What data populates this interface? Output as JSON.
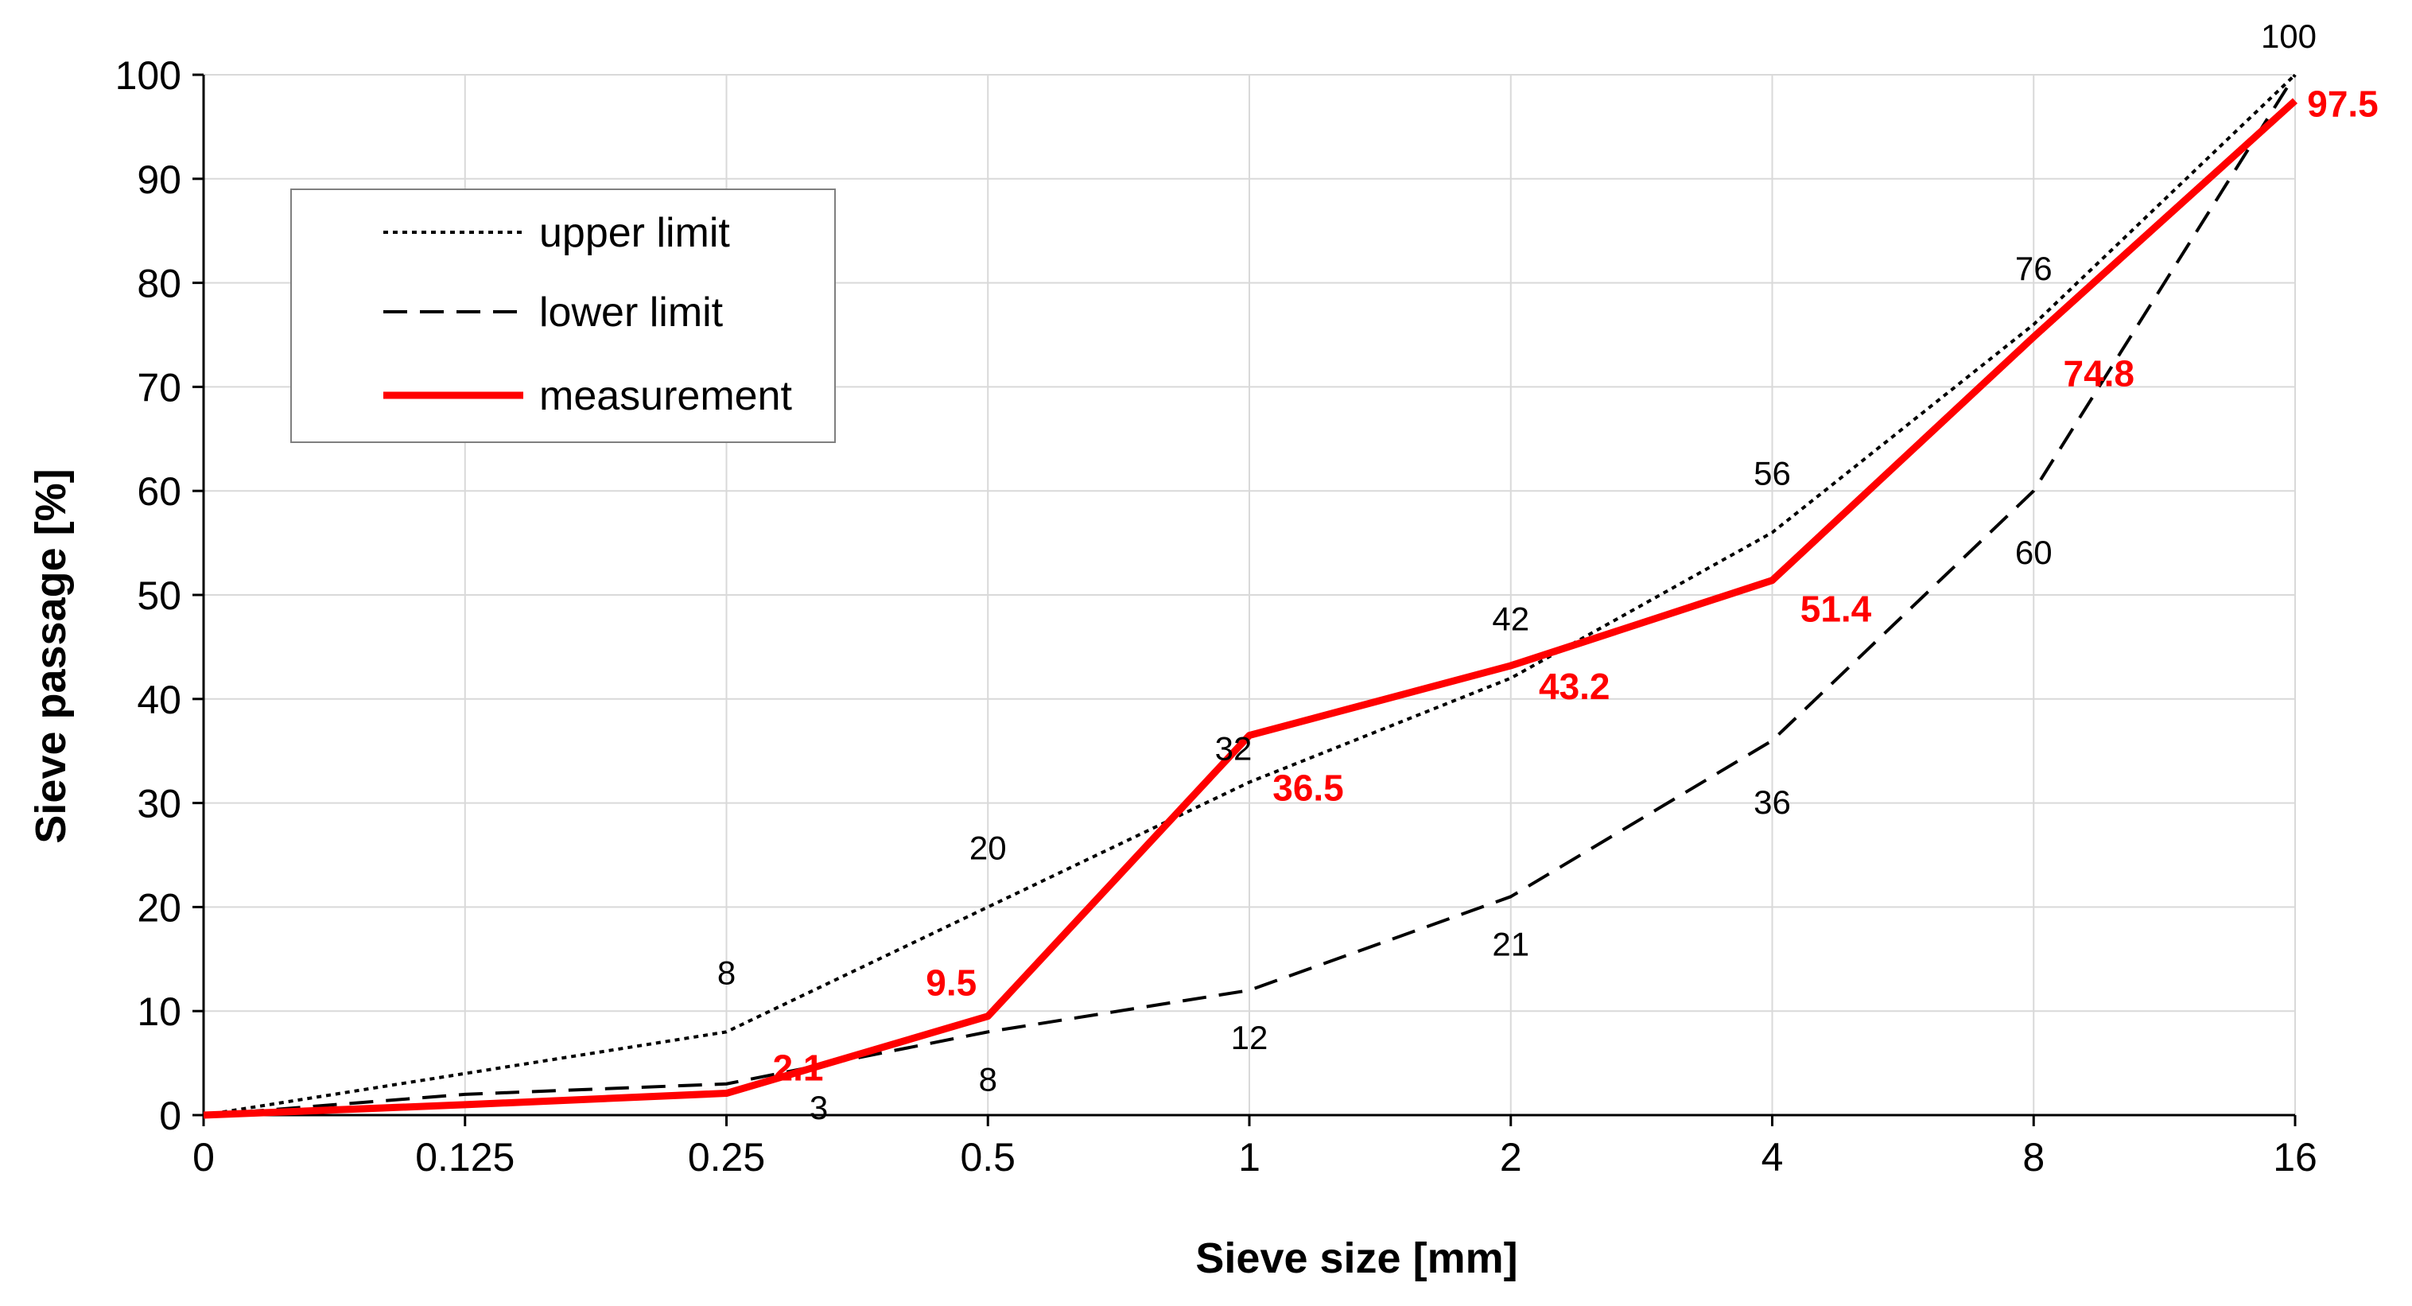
{
  "colors": {
    "measurement": "#ff0000",
    "limits": "#000000",
    "grid": "#d9d9d9",
    "axis": "#000000"
  },
  "chart_data": {
    "type": "line",
    "title": "",
    "xlabel": "Sieve size [mm]",
    "ylabel": "Sieve passage [%]",
    "x_scale": "categorical",
    "categories": [
      "0",
      "0.125",
      "0.25",
      "0.5",
      "1",
      "2",
      "4",
      "8",
      "16"
    ],
    "ylim": [
      0,
      100
    ],
    "yticks": [
      "0",
      "10",
      "20",
      "30",
      "40",
      "50",
      "60",
      "70",
      "80",
      "90",
      "100"
    ],
    "grid": true,
    "legend_position": "top-left",
    "series": [
      {
        "name": "upper limit",
        "style": "dotted",
        "color": "#000000",
        "x": [
          "0",
          "0.125",
          "0.25",
          "0.5",
          "1",
          "2",
          "4",
          "8",
          "16"
        ],
        "values": [
          0,
          4,
          8,
          20,
          32,
          42,
          56,
          76,
          100
        ]
      },
      {
        "name": "lower limit",
        "style": "dashed",
        "color": "#000000",
        "x": [
          "0",
          "0.125",
          "0.25",
          "0.5",
          "1",
          "2",
          "4",
          "8",
          "16"
        ],
        "values": [
          0,
          2,
          3,
          8,
          12,
          21,
          36,
          60,
          100
        ]
      },
      {
        "name": "measurement",
        "style": "solid",
        "color": "#ff0000",
        "x": [
          "0",
          "0.125",
          "0.25",
          "0.5",
          "1",
          "2",
          "4",
          "8",
          "16"
        ],
        "values": [
          0,
          1.0,
          2.1,
          9.5,
          36.5,
          43.2,
          51.4,
          74.8,
          97.5
        ]
      }
    ],
    "data_labels": {
      "upper": [
        {
          "x": "0.25",
          "text": "8"
        },
        {
          "x": "0.5",
          "text": "20"
        },
        {
          "x": "1",
          "text": "32"
        },
        {
          "x": "2",
          "text": "42"
        },
        {
          "x": "4",
          "text": "56"
        },
        {
          "x": "8",
          "text": "76"
        },
        {
          "x": "16",
          "text": "100"
        }
      ],
      "lower": [
        {
          "x": "0.25",
          "text": "3"
        },
        {
          "x": "0.5",
          "text": "8"
        },
        {
          "x": "1",
          "text": "12"
        },
        {
          "x": "2",
          "text": "21"
        },
        {
          "x": "4",
          "text": "36"
        },
        {
          "x": "8",
          "text": "60"
        }
      ],
      "measurement": [
        {
          "x": "0.25",
          "text": "2.1"
        },
        {
          "x": "0.5",
          "text": "9.5"
        },
        {
          "x": "1",
          "text": "36.5"
        },
        {
          "x": "2",
          "text": "43.2"
        },
        {
          "x": "4",
          "text": "51.4"
        },
        {
          "x": "8",
          "text": "74.8"
        },
        {
          "x": "16",
          "text": "97.5"
        }
      ]
    }
  }
}
